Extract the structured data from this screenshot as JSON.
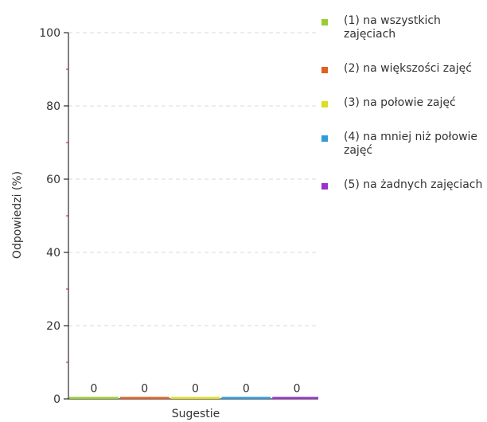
{
  "chart_data": {
    "type": "bar",
    "categories": [
      "Sugestie"
    ],
    "series": [
      {
        "name": "(1) na wszystkich zajęciach",
        "values": [
          0
        ],
        "color": "#99cc33"
      },
      {
        "name": "(2) na większości zajęć",
        "values": [
          0
        ],
        "color": "#e06020"
      },
      {
        "name": "(3) na połowie zajęć",
        "values": [
          0
        ],
        "color": "#dddd22"
      },
      {
        "name": "(4) na mniej niż połowie zajęć",
        "values": [
          0
        ],
        "color": "#3399dd"
      },
      {
        "name": "(5) na żadnych zajęciach",
        "values": [
          0
        ],
        "color": "#9933cc"
      }
    ],
    "data_labels": [
      "0",
      "0",
      "0",
      "0",
      "0"
    ],
    "xlabel": "Sugestie",
    "ylabel": "Odpowiedzi (%)",
    "ylim": [
      0,
      100
    ],
    "yticks": [
      0,
      20,
      40,
      60,
      80,
      100
    ],
    "grid": true,
    "legend": "right"
  }
}
